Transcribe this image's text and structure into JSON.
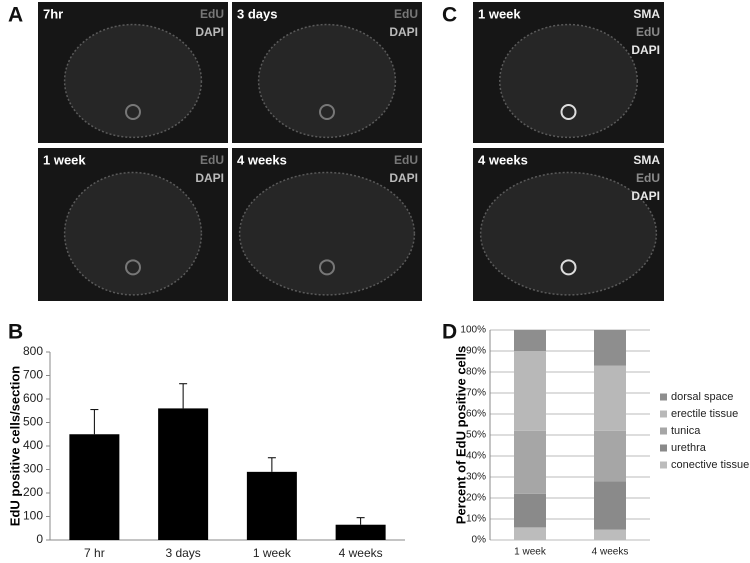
{
  "panel_labels": [
    "A",
    "B",
    "C",
    "D"
  ],
  "images": [
    {
      "label": "7hr",
      "stains": [
        "EdU",
        "DAPI"
      ]
    },
    {
      "label": "3 days",
      "stains": [
        "EdU",
        "DAPI"
      ]
    },
    {
      "label": "1 week",
      "stains": [
        "EdU",
        "DAPI"
      ]
    },
    {
      "label": "4 weeks",
      "stains": [
        "EdU",
        "DAPI"
      ]
    },
    {
      "label": "1 week",
      "stains": [
        "SMA",
        "EdU",
        "DAPI"
      ]
    },
    {
      "label": "4 weeks",
      "stains": [
        "SMA",
        "EdU",
        "DAPI"
      ]
    }
  ],
  "chart_data": [
    {
      "type": "bar",
      "y_label": "EdU positive cells/section",
      "categories": [
        "7 hr",
        "3 days",
        "1 week",
        "4 weeks"
      ],
      "values": [
        450,
        560,
        290,
        65
      ],
      "errors": [
        105,
        105,
        60,
        30
      ],
      "color": "#000000",
      "ylim": [
        0,
        800
      ],
      "yticks": [
        0,
        100,
        200,
        300,
        400,
        500,
        600,
        700,
        800
      ]
    },
    {
      "type": "stacked_bar",
      "y_label": "Percent of EdU positive cells",
      "categories": [
        "1 week",
        "4 weeks"
      ],
      "series": [
        {
          "name": "conective tissue",
          "color": "#bcbcbc",
          "values": [
            6,
            5
          ]
        },
        {
          "name": "urethra",
          "color": "#8a8a8a",
          "values": [
            16,
            23
          ]
        },
        {
          "name": "tunica",
          "color": "#a6a6a6",
          "values": [
            30,
            24
          ]
        },
        {
          "name": "erectile tissue",
          "color": "#b8b8b8",
          "values": [
            38,
            31
          ]
        },
        {
          "name": "dorsal space",
          "color": "#8e8e8e",
          "values": [
            10,
            17
          ]
        }
      ],
      "ylim": [
        0,
        100
      ],
      "yticks": [
        {
          "value": 0,
          "label": "0%"
        },
        {
          "value": 10,
          "label": "10%"
        },
        {
          "value": 20,
          "label": "20%"
        },
        {
          "value": 30,
          "label": "30%"
        },
        {
          "value": 40,
          "label": "40%"
        },
        {
          "value": 50,
          "label": "50%"
        },
        {
          "value": 60,
          "label": "60%"
        },
        {
          "value": 70,
          "label": "70%"
        },
        {
          "value": 80,
          "label": "80%"
        },
        {
          "value": 90,
          "label": "90%"
        },
        {
          "value": 100,
          "label": "100%"
        }
      ],
      "grid": true
    }
  ]
}
